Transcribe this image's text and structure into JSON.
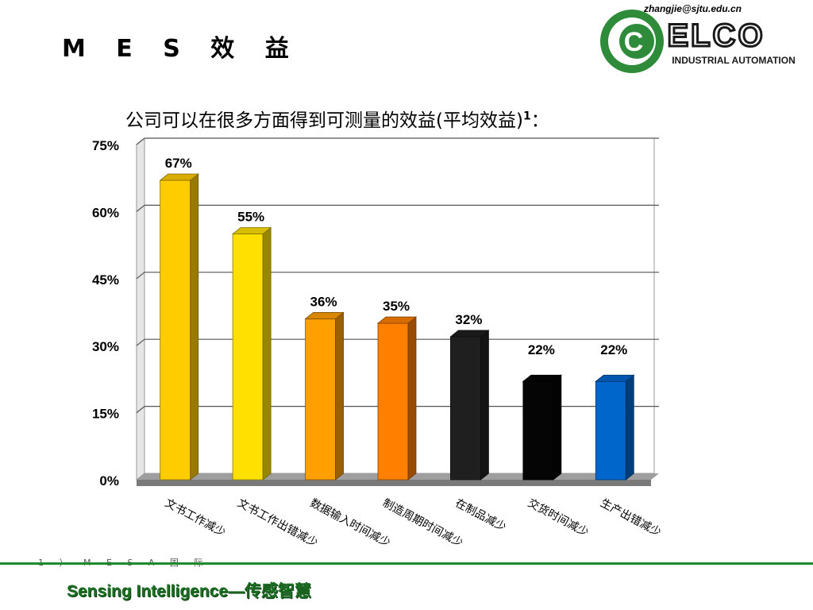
{
  "header": {
    "email": "zhangjie@sjtu.edu.cn",
    "title": "M E S 效 益",
    "logo_word": "ELCO",
    "logo_sub": "INDUSTRIAL AUTOMATION"
  },
  "subtitle": {
    "text": "公司可以在很多方面得到可测量的效益(平均效益)",
    "sup": "1",
    "tail": "："
  },
  "footer": {
    "footnote": "1 ） M E S A 国 际",
    "tagline": "Sensing  Intelligence—传感智慧"
  },
  "chart_data": {
    "type": "bar",
    "categories": [
      "文书工作减少",
      "文书工作出错减少",
      "数据输入时间减少",
      "制造周期时间减少",
      "在制品减少",
      "交货时间减少",
      "生产出错减少"
    ],
    "values": [
      67,
      55,
      36,
      35,
      32,
      22,
      22
    ],
    "data_labels": [
      "67%",
      "55%",
      "36%",
      "35%",
      "32%",
      "22%",
      "22%"
    ],
    "bar_colors": [
      "#FFCC00",
      "#FFE000",
      "#FF9F00",
      "#FF7F00",
      "#1F1F1F",
      "#050505",
      "#0066CC"
    ],
    "ylim": [
      0,
      75
    ],
    "yticks": [
      0,
      15,
      30,
      45,
      60,
      75
    ],
    "ytick_labels": [
      "0%",
      "15%",
      "30%",
      "45%",
      "60%",
      "75%"
    ],
    "grid": true,
    "style": "3d"
  }
}
